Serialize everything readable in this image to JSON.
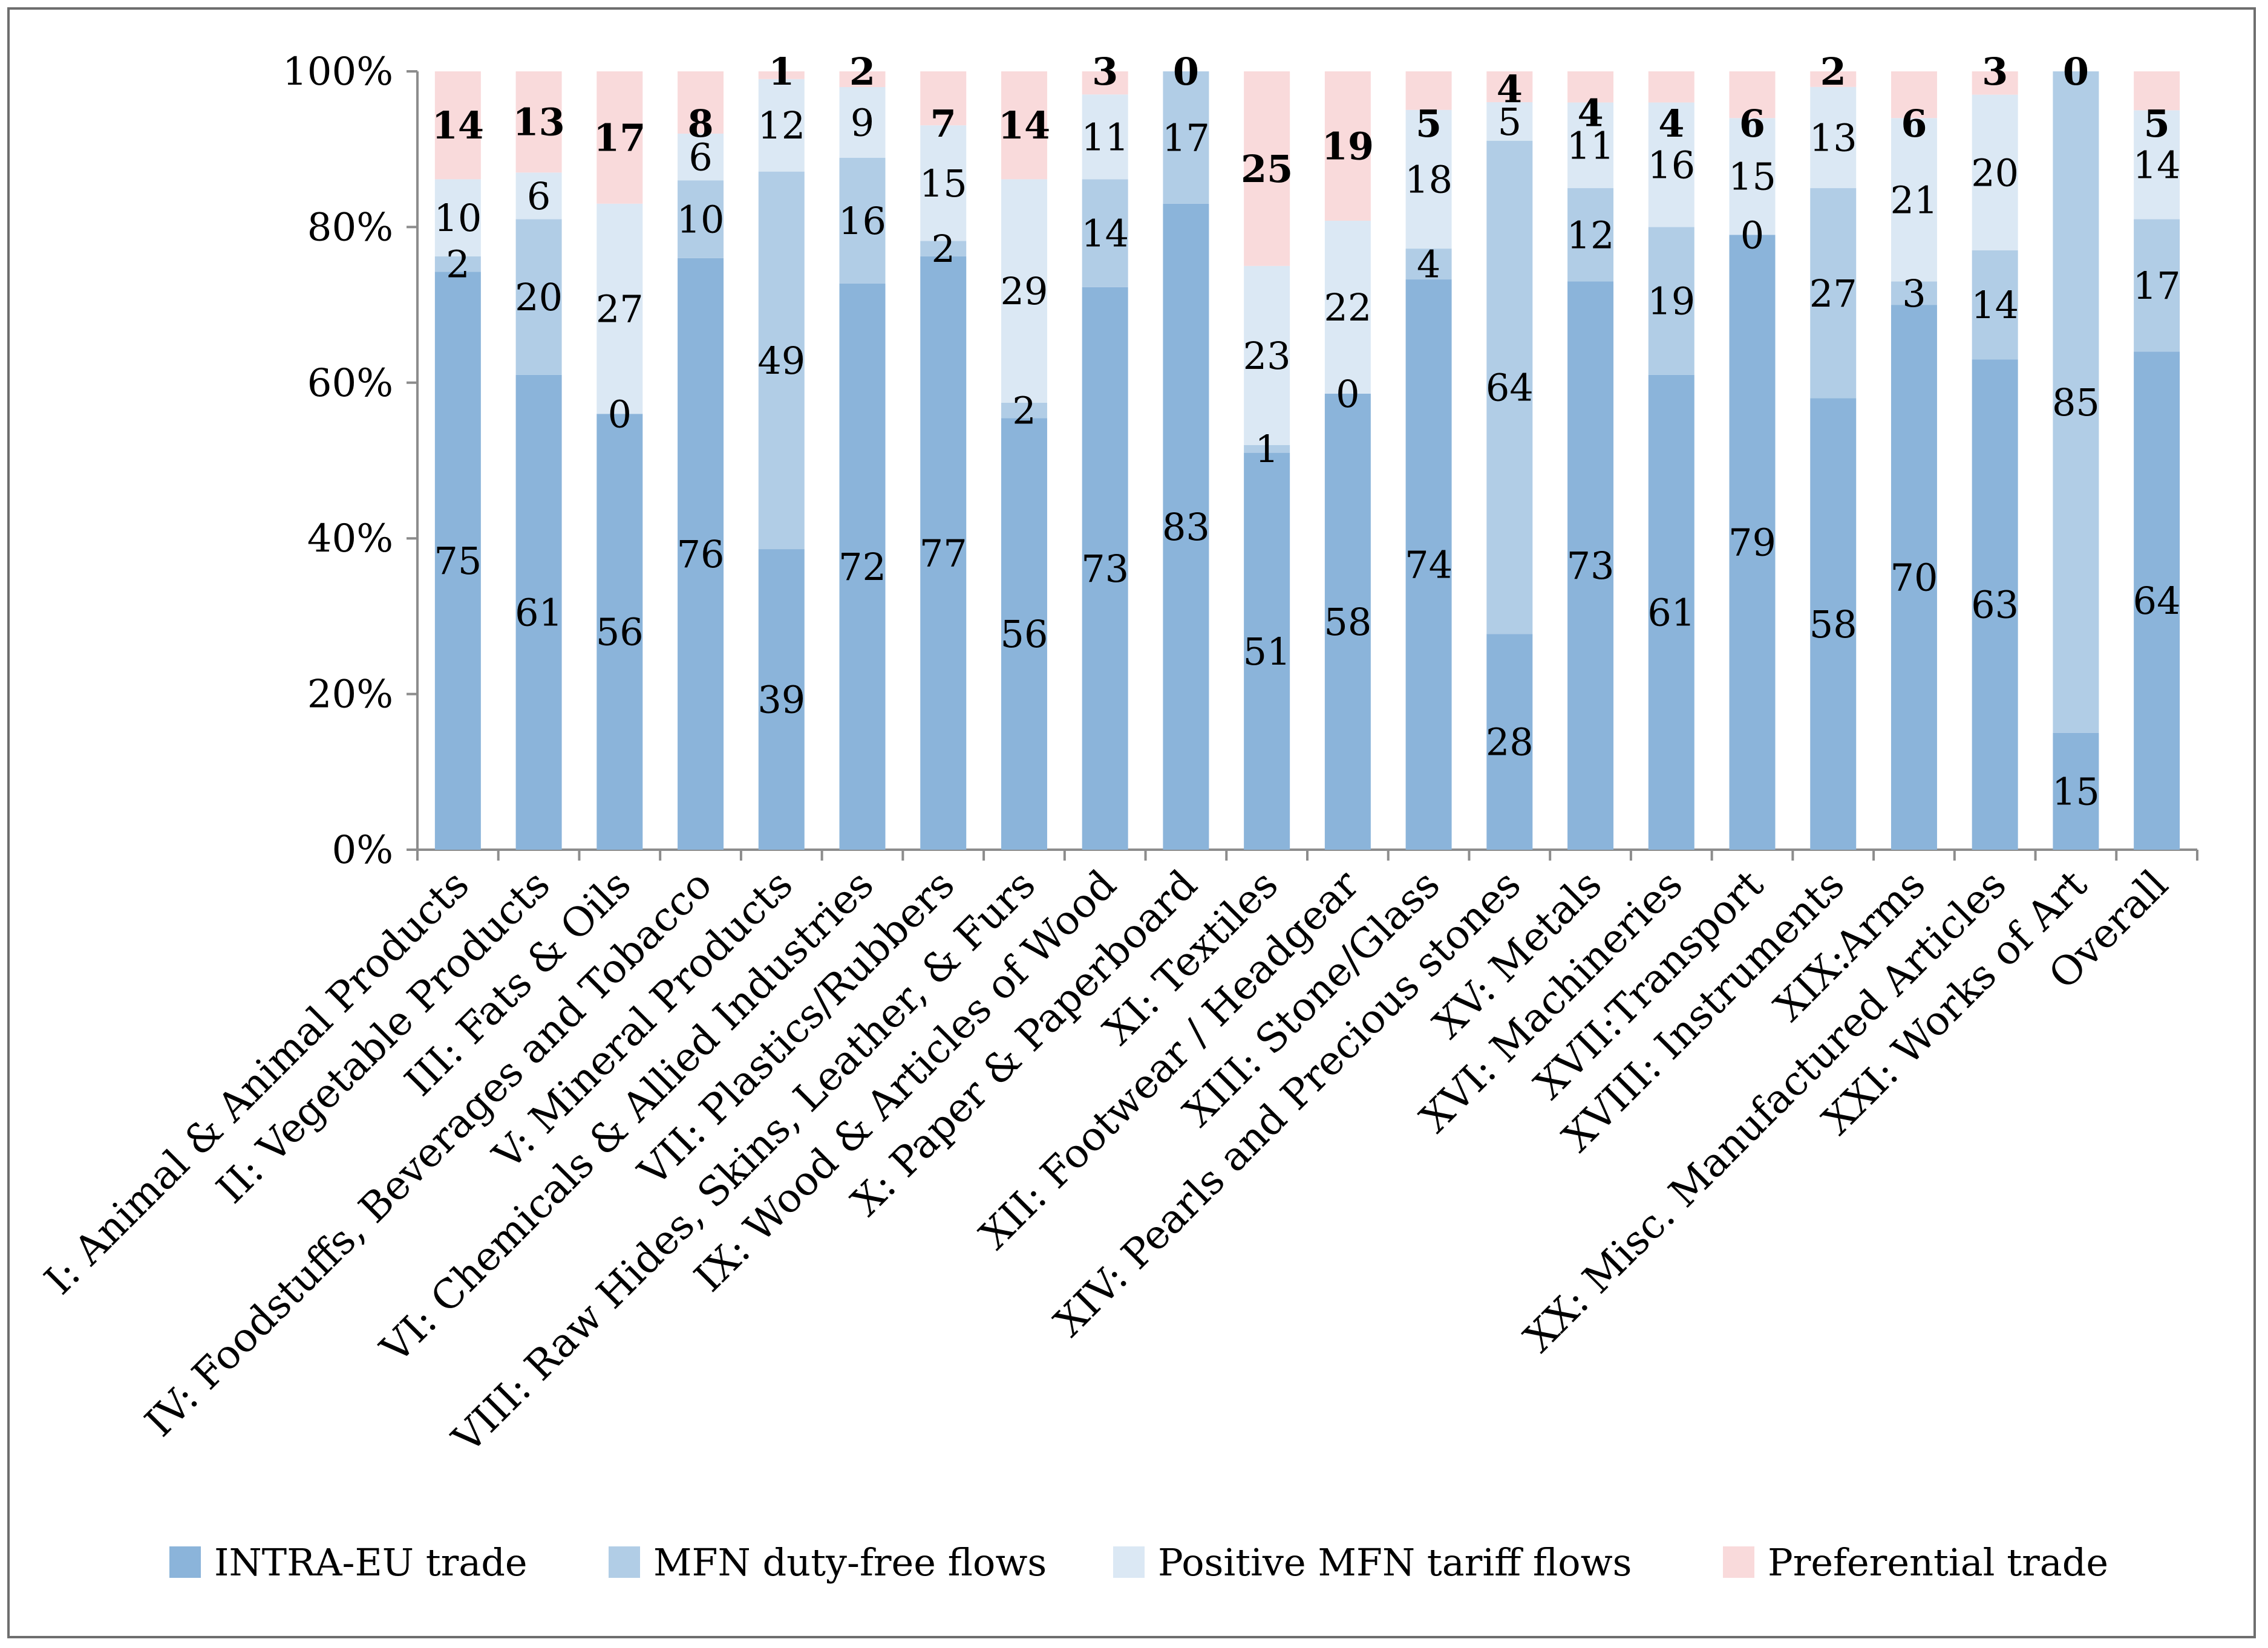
{
  "chart_data": {
    "type": "bar",
    "stacked": true,
    "title": "",
    "xlabel": "",
    "ylabel": "",
    "ylim": [
      0,
      100
    ],
    "yticks": [
      "0%",
      "20%",
      "40%",
      "60%",
      "80%",
      "100%"
    ],
    "legend_position": "bottom",
    "categories": [
      "I: Animal & Animal Products",
      "II: Vegetable Products",
      "III: Fats & Oils",
      "IV: Foodstuffs, Beverages and Tobacco",
      "V: Mineral Products",
      "VI: Chemicals & Allied Industries",
      "VII: Plastics/Rubbers",
      "VIII: Raw Hides, Skins, Leather, & Furs",
      "IX: Wood & Articles of Wood",
      "X: Paper & Paperboard",
      "XI: Textiles",
      "XII:  Footwear / Headgear",
      "XIII: Stone/Glass",
      "XIV: Pearls and Precious stones",
      "XV: Metals",
      "XVI: Machineries",
      "XVII:Transport",
      "XVIII: Instruments",
      "XIX:Arms",
      "XX: Misc. Manufactured Articles",
      "XXI: Works of Art",
      "Overall"
    ],
    "series": [
      {
        "name": "INTRA-EU trade",
        "color": "#8bb4da",
        "bold_labels": false,
        "values": [
          75,
          61,
          56,
          76,
          39,
          72,
          77,
          56,
          73,
          83,
          51,
          58,
          74,
          28,
          73,
          61,
          79,
          58,
          70,
          63,
          15,
          64
        ]
      },
      {
        "name": "MFN duty-free flows",
        "color": "#b1cde6",
        "bold_labels": false,
        "values": [
          2,
          20,
          0,
          10,
          49,
          16,
          2,
          2,
          14,
          17,
          1,
          0,
          4,
          64,
          12,
          19,
          0,
          27,
          3,
          14,
          85,
          17
        ]
      },
      {
        "name": "Positive MFN tariff flows",
        "color": "#dbe8f4",
        "bold_labels": false,
        "values": [
          10,
          6,
          27,
          6,
          12,
          9,
          15,
          29,
          11,
          null,
          23,
          22,
          18,
          5,
          11,
          16,
          15,
          13,
          21,
          20,
          null,
          14
        ]
      },
      {
        "name": "Preferential trade",
        "color": "#f9dadb",
        "bold_labels": true,
        "values": [
          14,
          13,
          17,
          8,
          1,
          2,
          7,
          14,
          3,
          0,
          25,
          19,
          5,
          4,
          4,
          4,
          6,
          2,
          6,
          3,
          0,
          5
        ]
      }
    ]
  }
}
